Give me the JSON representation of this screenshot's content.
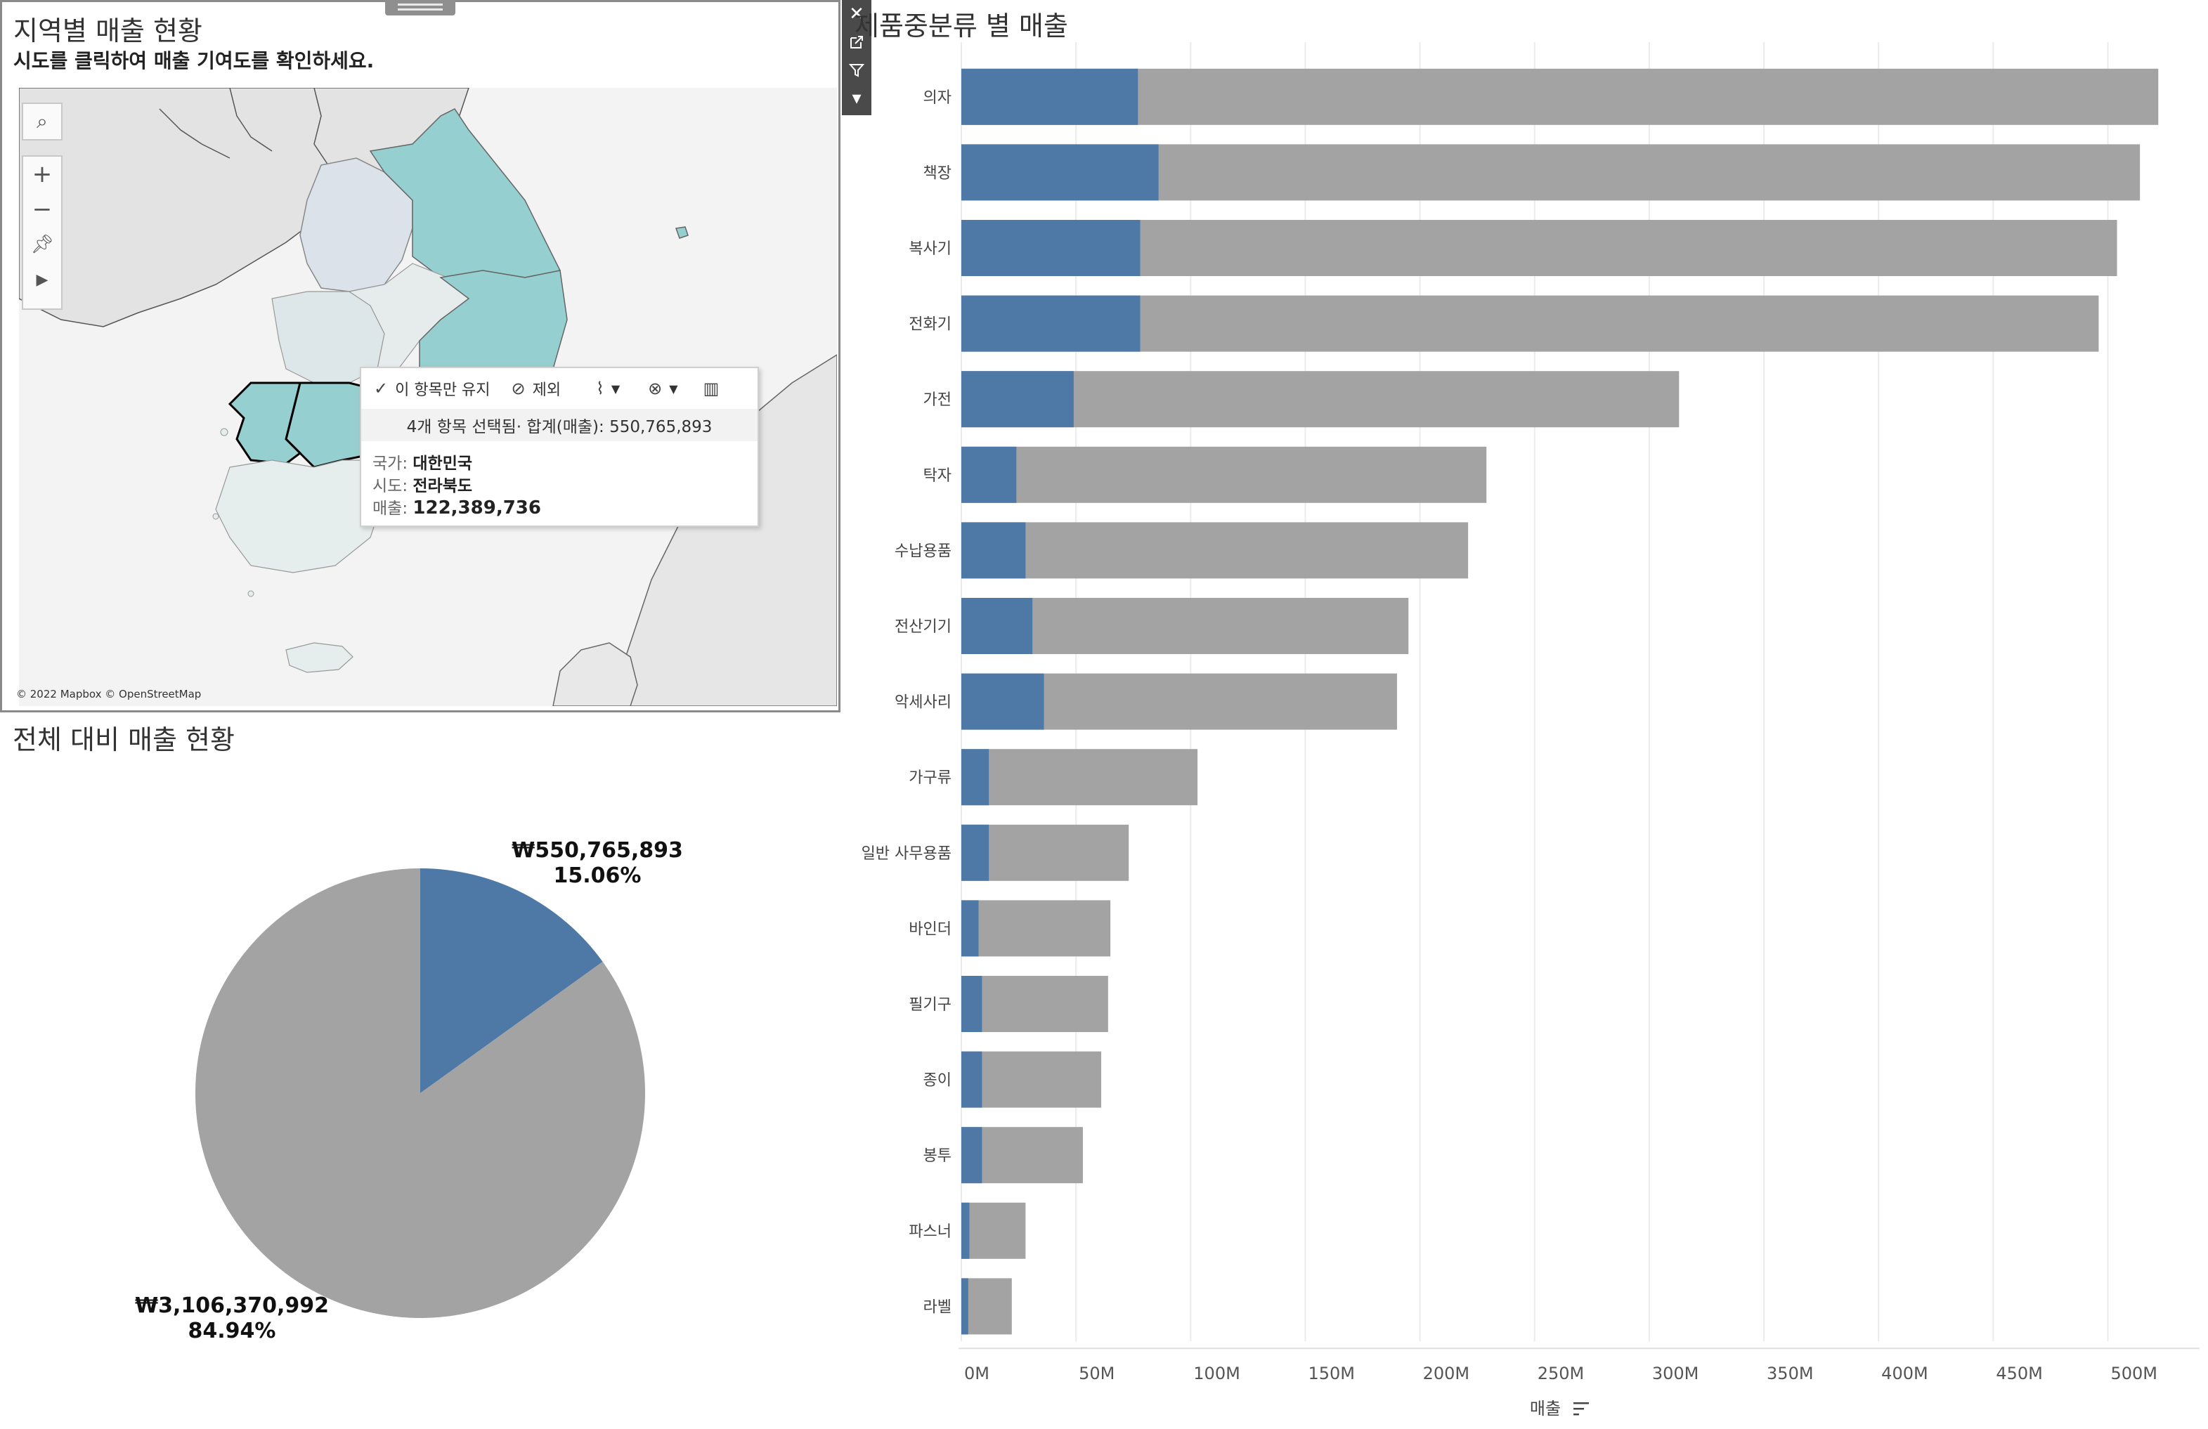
{
  "map_panel": {
    "title": "지역별 매출 현황",
    "subtitle": "시도를 클릭하여 매출 기여도를 확인하세요.",
    "attribution": "© 2022 Mapbox © OpenStreetMap",
    "controls": {
      "search_icon": "magnifier-icon",
      "zoom_in": "+",
      "zoom_out": "−",
      "pin_icon": "pin-icon",
      "play_icon": "▶"
    },
    "colors": {
      "selected": "#96cfcf",
      "unselected": "#dfe9ea",
      "land": "#e3e3e3",
      "water": "#f3f3f3"
    }
  },
  "toolbar": {
    "close_icon": "✕",
    "popout_icon": "popout-icon",
    "filter_icon": "filter-icon",
    "more_icon": "▾"
  },
  "tooltip": {
    "keep_only": "이 항목만 유지",
    "exclude": "제외",
    "summary": "4개 항목 선택됨· 합계(매출): 550,765,893",
    "country_label": "국가:",
    "country_value": "대한민국",
    "region_label": "시도:",
    "region_value": "전라북도",
    "sales_label": "매출:",
    "sales_value": "122,389,736"
  },
  "chart_data": [
    {
      "type": "pie",
      "title": "전체 대비 매출 현황",
      "slices": [
        {
          "value": 550765893,
          "value_label": "₩550,765,893",
          "percent_label": "15.06%",
          "color": "#4e79a7"
        },
        {
          "value": 3106370992,
          "value_label": "₩3,106,370,992",
          "percent_label": "84.94%",
          "color": "#a3a3a3"
        }
      ]
    },
    {
      "type": "bar",
      "title": "제품중분류 별 매출",
      "xlabel": "매출",
      "xlim": [
        0,
        540000000
      ],
      "ticks": [
        0,
        50000000,
        100000000,
        150000000,
        200000000,
        250000000,
        300000000,
        350000000,
        400000000,
        450000000,
        500000000
      ],
      "tick_labels": [
        "0M",
        "50M",
        "100M",
        "150M",
        "200M",
        "250M",
        "300M",
        "350M",
        "400M",
        "450M",
        "500M"
      ],
      "grid": true,
      "colors": {
        "selected": "#4e79a7",
        "total": "#a3a3a3"
      },
      "categories": [
        "의자",
        "책장",
        "복사기",
        "전화기",
        "가전",
        "탁자",
        "수납용품",
        "전산기기",
        "악세사리",
        "가구류",
        "일반 사무용품",
        "바인더",
        "필기구",
        "종이",
        "봉투",
        "파스너",
        "라벨"
      ],
      "series": [
        {
          "values": [
            77000000,
            86000000,
            78000000,
            78000000,
            49000000,
            24000000,
            28000000,
            31000000,
            36000000,
            12000000,
            12000000,
            7500000,
            9000000,
            9000000,
            9000000,
            3500000,
            3000000
          ]
        },
        {
          "values": [
            522000000,
            514000000,
            504000000,
            496000000,
            313000000,
            229000000,
            221000000,
            195000000,
            190000000,
            103000000,
            73000000,
            65000000,
            64000000,
            61000000,
            53000000,
            28000000,
            22000000
          ]
        }
      ]
    }
  ]
}
